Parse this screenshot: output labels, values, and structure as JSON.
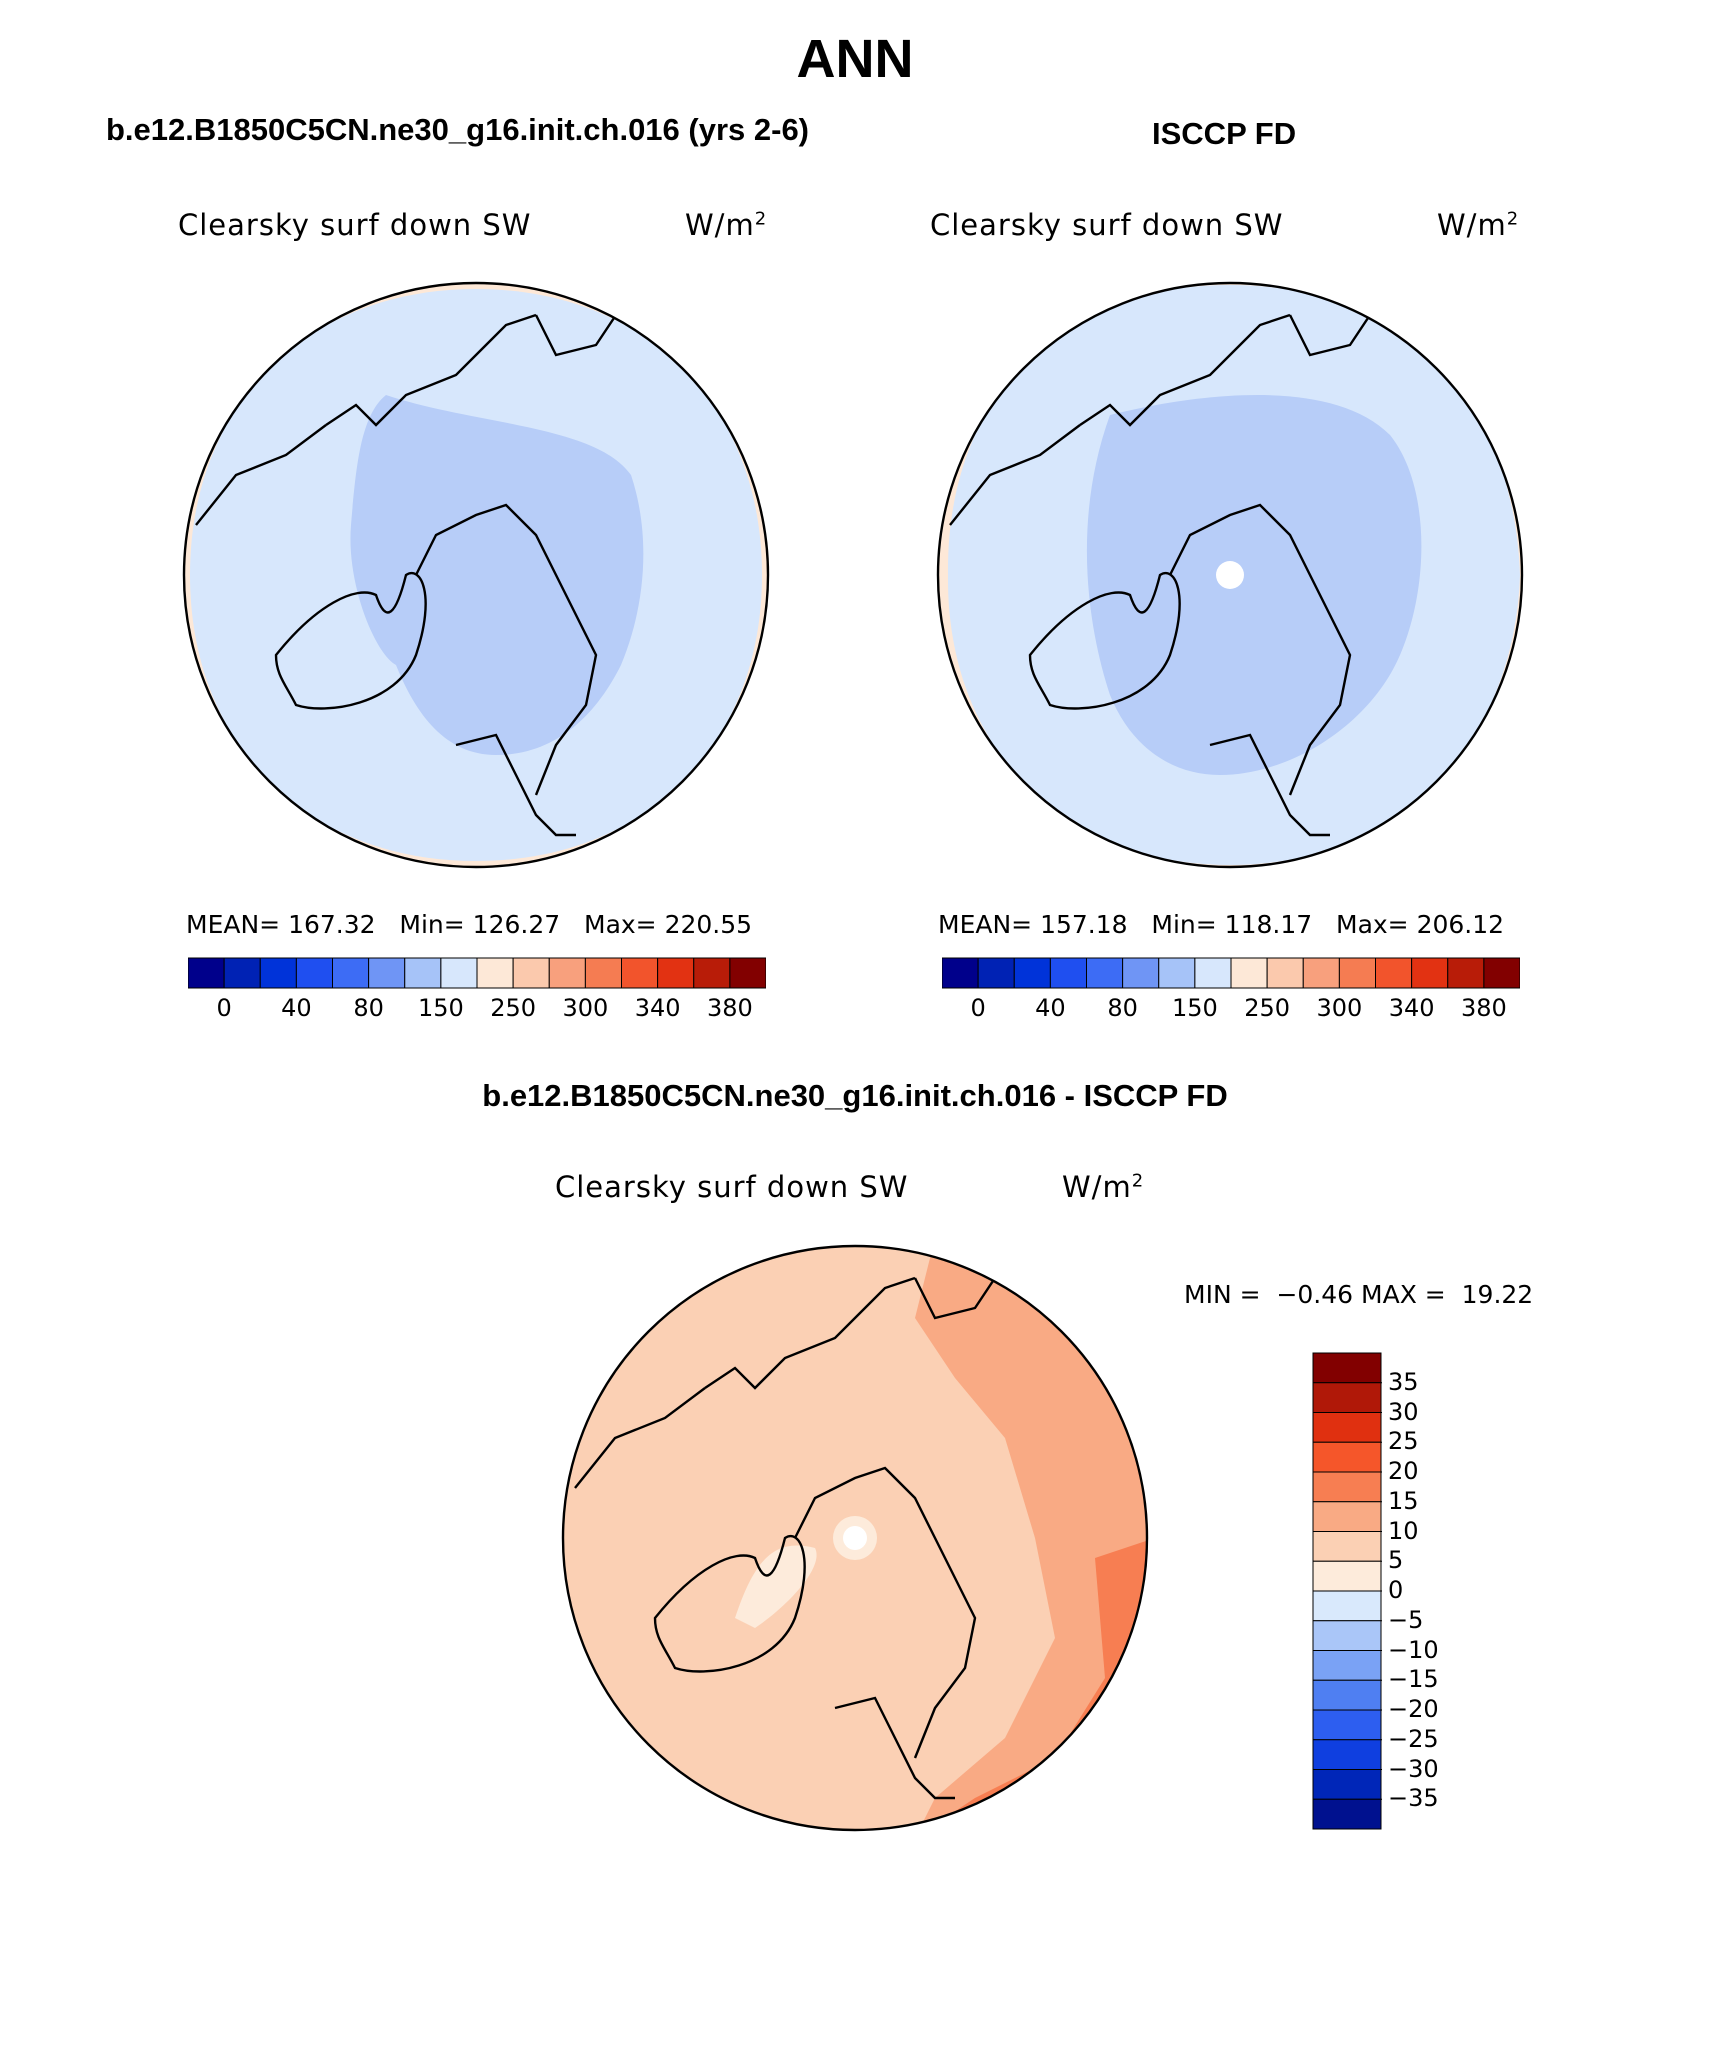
{
  "page": {
    "season": "ANN",
    "case_title": "b.e12.B1850C5CN.ne30_g16.init.ch.016 (yrs 2-6)",
    "obs_title": "ISCCP FD",
    "diff_title": "b.e12.B1850C5CN.ne30_g16.init.ch.016 - ISCCP FD"
  },
  "panels": {
    "model": {
      "variable": "Clearsky surf down SW",
      "units": "W/m",
      "units_sup": "2",
      "mean_label": "MEAN=",
      "mean": "167.32",
      "min_label": "Min=",
      "min": "126.27",
      "max_label": "Max=",
      "max": "220.55"
    },
    "obs": {
      "variable": "Clearsky surf down SW",
      "units": "W/m",
      "units_sup": "2",
      "mean_label": "MEAN=",
      "mean": "157.18",
      "min_label": "Min=",
      "min": "118.17",
      "max_label": "Max=",
      "max": "206.12"
    },
    "diff": {
      "variable": "Clearsky surf down SW",
      "units": "W/m",
      "units_sup": "2",
      "min_label": "MIN =",
      "min": "−0.46",
      "max_label": "MAX =",
      "max": "19.22"
    }
  },
  "colorbars": {
    "abs": {
      "colors": [
        "#00008b",
        "#0022b4",
        "#0033d9",
        "#1f4ff0",
        "#3d6cf5",
        "#6f95f5",
        "#a6c3f8",
        "#d7e7fc",
        "#fde8d7",
        "#fbc9ad",
        "#f8a07d",
        "#f57c52",
        "#f2542c",
        "#e23212",
        "#b81c08",
        "#820000"
      ],
      "labels": [
        "0",
        "40",
        "80",
        "150",
        "250",
        "300",
        "340",
        "380"
      ]
    },
    "diff": {
      "colors": [
        "#820000",
        "#b01808",
        "#e03010",
        "#f5562a",
        "#f77e52",
        "#f9aa84",
        "#fbd0b4",
        "#fdebdb",
        "#d9e9fc",
        "#aac6f8",
        "#7aa2f5",
        "#4f7ff2",
        "#2d5ef0",
        "#0f3fe0",
        "#0026b8",
        "#00118f"
      ],
      "labels": [
        "35",
        "30",
        "25",
        "20",
        "15",
        "10",
        "5",
        "0",
        "−5",
        "−10",
        "−15",
        "−20",
        "−25",
        "−30",
        "−35"
      ]
    }
  },
  "legend_fills": {
    "model_outer": "#fde8d7",
    "model_mid": "#d7e7fc",
    "model_inner": "#b7cdf8",
    "obs_outer": "#fde8d7",
    "obs_mid": "#d7e7fc",
    "obs_inner": "#b7cdf8",
    "diff_base": "#fbd0b4",
    "diff_high": "#f9aa84",
    "diff_peak": "#f77e52",
    "diff_low": "#fdebdb"
  }
}
